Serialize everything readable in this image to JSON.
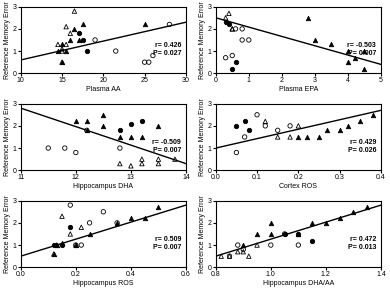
{
  "chart_data": [
    {
      "type": "scatter",
      "xlabel": "Plasma AA",
      "ylabel": "Reference Memory Error",
      "xlim": [
        10.0,
        30.0
      ],
      "ylim": [
        0.0,
        3.0
      ],
      "xticks": [
        10,
        15,
        20,
        25,
        30
      ],
      "yticks": [
        0,
        1,
        2,
        3
      ],
      "annotations": [
        "r= 0.426\nP= 0.027"
      ],
      "series": [
        {
          "type": "line",
          "color": "black",
          "x": [
            10.0,
            30.0
          ],
          "values": [
            0.6,
            2.3
          ]
        },
        {
          "type": "scatter",
          "marker": "circle_open",
          "color": "black",
          "x": [
            19.0,
            21.5,
            25.0,
            25.5,
            26.0,
            28.0
          ],
          "values": [
            1.5,
            1.0,
            0.5,
            0.5,
            0.8,
            2.2
          ]
        },
        {
          "type": "scatter",
          "marker": "circle",
          "color": "black",
          "x": [
            17.0,
            17.5,
            18.0
          ],
          "values": [
            1.8,
            1.5,
            1.0
          ]
        },
        {
          "type": "scatter",
          "marker": "triangle_open",
          "color": "black",
          "x": [
            14.5,
            15.0,
            15.5,
            15.0,
            15.5,
            16.0,
            15.0,
            16.5
          ],
          "values": [
            1.3,
            1.1,
            2.1,
            0.5,
            1.3,
            1.8,
            1.0,
            2.8
          ]
        },
        {
          "type": "scatter",
          "marker": "triangle",
          "color": "black",
          "x": [
            14.5,
            15.0,
            15.0,
            15.5,
            16.0,
            16.5,
            17.0,
            17.5,
            25.0
          ],
          "values": [
            1.0,
            0.5,
            1.3,
            1.0,
            1.5,
            2.0,
            1.5,
            2.2,
            2.2
          ]
        }
      ]
    },
    {
      "type": "scatter",
      "xlabel": "Plasma EPA",
      "ylabel": "Reference Memory Error",
      "xlim": [
        0.0,
        5.0
      ],
      "ylim": [
        0.0,
        3.0
      ],
      "xticks": [
        0,
        1,
        2,
        3,
        4,
        5
      ],
      "yticks": [
        0,
        1,
        2,
        3
      ],
      "annotations": [
        "r= -0.503\nP= 0.007"
      ],
      "series": [
        {
          "type": "line",
          "color": "black",
          "x": [
            0.0,
            5.0
          ],
          "values": [
            2.5,
            0.4
          ]
        },
        {
          "type": "scatter",
          "marker": "circle_open",
          "color": "black",
          "x": [
            0.3,
            0.5,
            0.6,
            0.8,
            0.8,
            1.0
          ],
          "values": [
            0.7,
            0.8,
            2.0,
            2.0,
            1.5,
            1.5
          ]
        },
        {
          "type": "scatter",
          "marker": "circle",
          "color": "black",
          "x": [
            0.3,
            0.4,
            0.5,
            0.6
          ],
          "values": [
            2.3,
            2.2,
            0.2,
            0.5
          ]
        },
        {
          "type": "scatter",
          "marker": "triangle_open",
          "color": "black",
          "x": [
            0.3,
            0.4,
            0.5,
            0.5
          ],
          "values": [
            2.5,
            2.7,
            2.0,
            2.0
          ]
        },
        {
          "type": "scatter",
          "marker": "triangle",
          "color": "black",
          "x": [
            2.8,
            3.0,
            3.5,
            4.0,
            4.0,
            4.2,
            4.5,
            4.5
          ],
          "values": [
            2.5,
            1.5,
            1.3,
            1.0,
            0.5,
            0.7,
            0.2,
            1.0
          ]
        }
      ]
    },
    {
      "type": "scatter",
      "xlabel": "Hippocampus DHA",
      "ylabel": "Reference Memory Error",
      "xlim": [
        11.0,
        14.0
      ],
      "ylim": [
        0.0,
        3.0
      ],
      "xticks": [
        11,
        12,
        13,
        14
      ],
      "yticks": [
        0,
        1,
        2,
        3
      ],
      "annotations": [
        "r= -0.509\nP= 0.007"
      ],
      "series": [
        {
          "type": "line",
          "color": "black",
          "x": [
            11.0,
            14.0
          ],
          "values": [
            2.8,
            0.3
          ]
        },
        {
          "type": "scatter",
          "marker": "circle_open",
          "color": "black",
          "x": [
            11.5,
            11.8,
            12.0,
            12.2,
            12.8
          ],
          "values": [
            1.0,
            1.0,
            0.8,
            1.8,
            1.0
          ]
        },
        {
          "type": "scatter",
          "marker": "circle",
          "color": "black",
          "x": [
            12.8,
            13.0,
            13.2
          ],
          "values": [
            1.8,
            2.1,
            2.2
          ]
        },
        {
          "type": "scatter",
          "marker": "triangle_open",
          "color": "black",
          "x": [
            12.8,
            13.0,
            13.2,
            13.2,
            13.5,
            13.5,
            13.8
          ],
          "values": [
            0.3,
            0.2,
            0.3,
            0.5,
            0.3,
            0.5,
            0.5
          ]
        },
        {
          "type": "scatter",
          "marker": "triangle",
          "color": "black",
          "x": [
            12.0,
            12.2,
            12.2,
            12.5,
            12.5,
            12.8,
            13.0,
            13.2,
            13.5
          ],
          "values": [
            2.2,
            2.2,
            1.8,
            2.5,
            2.0,
            1.5,
            1.5,
            1.5,
            2.0
          ]
        }
      ]
    },
    {
      "type": "scatter",
      "xlabel": "Cortex ROS",
      "ylabel": "Reference Memory Error",
      "xlim": [
        0.0,
        0.4
      ],
      "ylim": [
        0.0,
        3.0
      ],
      "xticks": [
        {
          "value": 0,
          "label": "0.0"
        },
        0.1,
        0.2,
        0.3,
        0.4
      ],
      "yticks": [
        0,
        1,
        2,
        3
      ],
      "annotations": [
        "r= 0.429\nP= 0.026"
      ],
      "series": [
        {
          "type": "line",
          "color": "black",
          "x": [
            0.0,
            0.4
          ],
          "values": [
            1.0,
            2.7
          ]
        },
        {
          "type": "scatter",
          "marker": "circle_open",
          "color": "black",
          "x": [
            0.05,
            0.07,
            0.1,
            0.12,
            0.15,
            0.18
          ],
          "values": [
            0.8,
            1.5,
            2.5,
            2.0,
            1.8,
            2.0
          ]
        },
        {
          "type": "scatter",
          "marker": "circle",
          "color": "black",
          "x": [
            0.05,
            0.07,
            0.08
          ],
          "values": [
            2.0,
            2.2,
            1.8
          ]
        },
        {
          "type": "scatter",
          "marker": "triangle_open",
          "color": "black",
          "x": [
            0.12,
            0.15,
            0.18,
            0.2
          ],
          "values": [
            2.2,
            1.5,
            1.5,
            2.0
          ]
        },
        {
          "type": "scatter",
          "marker": "triangle",
          "color": "black",
          "x": [
            0.2,
            0.22,
            0.25,
            0.27,
            0.3,
            0.32,
            0.35,
            0.38
          ],
          "values": [
            1.5,
            1.5,
            1.5,
            1.8,
            1.8,
            2.0,
            2.2,
            2.5
          ]
        }
      ]
    },
    {
      "type": "scatter",
      "xlabel": "Hippocampus ROS",
      "ylabel": "Reference Memory Error",
      "xlim": [
        0.0,
        0.6
      ],
      "ylim": [
        0.0,
        3.0
      ],
      "xticks": [
        {
          "value": 0,
          "label": "0.0"
        },
        0.2,
        0.4,
        0.6
      ],
      "yticks": [
        0,
        1,
        2,
        3
      ],
      "annotations": [
        "r= 0.509\nP= 0.007"
      ],
      "series": [
        {
          "type": "line",
          "color": "black",
          "x": [
            0.0,
            0.6
          ],
          "values": [
            0.5,
            2.8
          ]
        },
        {
          "type": "scatter",
          "marker": "circle_open",
          "color": "black",
          "x": [
            0.18,
            0.2,
            0.22,
            0.25,
            0.3,
            0.35
          ],
          "values": [
            2.8,
            1.0,
            1.0,
            2.0,
            2.5,
            2.0
          ]
        },
        {
          "type": "scatter",
          "marker": "circle",
          "color": "black",
          "x": [
            0.12,
            0.15,
            0.18
          ],
          "values": [
            1.0,
            1.0,
            1.8
          ]
        },
        {
          "type": "scatter",
          "marker": "triangle_open",
          "color": "black",
          "x": [
            0.12,
            0.13,
            0.15,
            0.18,
            0.2,
            0.22
          ],
          "values": [
            0.6,
            1.0,
            2.3,
            1.5,
            1.0,
            1.8
          ]
        },
        {
          "type": "scatter",
          "marker": "triangle",
          "color": "black",
          "x": [
            0.12,
            0.13,
            0.15,
            0.2,
            0.25,
            0.35,
            0.4,
            0.45,
            0.5
          ],
          "values": [
            0.6,
            1.0,
            1.1,
            1.0,
            1.5,
            2.0,
            2.2,
            2.2,
            2.7
          ]
        }
      ]
    },
    {
      "type": "scatter",
      "xlabel": "Hippocampus DHA/AA",
      "ylabel": "Reference Memory Error",
      "xlim": [
        0.8,
        1.4
      ],
      "ylim": [
        0.0,
        3.0
      ],
      "xticks": [
        0.8,
        {
          "value": 1,
          "label": "1.0"
        },
        1.2,
        1.4
      ],
      "yticks": [
        0,
        1,
        2,
        3
      ],
      "annotations": [
        "r= 0.472\nP= 0.013"
      ],
      "series": [
        {
          "type": "line",
          "color": "black",
          "x": [
            0.8,
            1.4
          ],
          "values": [
            0.5,
            2.8
          ]
        },
        {
          "type": "scatter",
          "marker": "circle_open",
          "color": "black",
          "x": [
            0.85,
            0.88,
            0.9,
            1.0,
            1.05,
            1.1
          ],
          "values": [
            0.5,
            1.0,
            0.8,
            1.0,
            1.5,
            1.0
          ]
        },
        {
          "type": "scatter",
          "marker": "circle",
          "color": "black",
          "x": [
            1.05,
            1.1,
            1.15
          ],
          "values": [
            1.5,
            1.5,
            1.2
          ]
        },
        {
          "type": "scatter",
          "marker": "triangle_open",
          "color": "black",
          "x": [
            0.82,
            0.85,
            0.88,
            0.9,
            0.92,
            0.95
          ],
          "values": [
            0.5,
            0.5,
            0.7,
            0.7,
            0.5,
            1.0
          ]
        },
        {
          "type": "scatter",
          "marker": "triangle",
          "color": "black",
          "x": [
            0.9,
            0.95,
            1.0,
            1.0,
            1.1,
            1.15,
            1.2,
            1.25,
            1.3,
            1.35
          ],
          "values": [
            1.0,
            1.5,
            1.5,
            2.0,
            1.5,
            2.0,
            2.0,
            2.2,
            2.5,
            2.7
          ]
        }
      ]
    }
  ]
}
